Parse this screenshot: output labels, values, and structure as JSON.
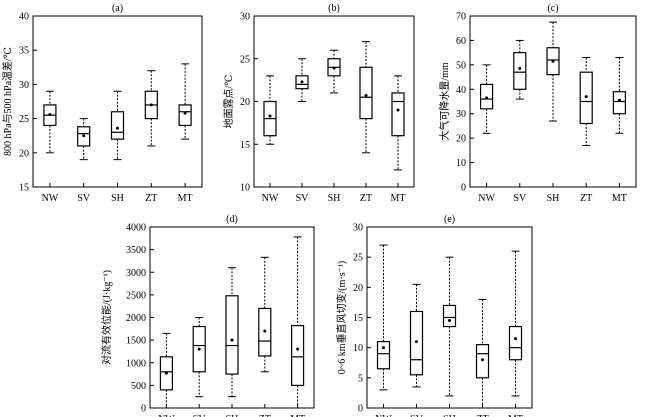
{
  "figure": {
    "categories": [
      "NW",
      "SV",
      "SH",
      "ZT",
      "MT"
    ]
  },
  "chart_data": [
    {
      "type": "box",
      "panel": "(a)",
      "ylabel": "800 hPa与500 hPa温差/℃",
      "ylim": [
        15,
        40
      ],
      "yticks": [
        15,
        20,
        25,
        30,
        35,
        40
      ],
      "categories": [
        "NW",
        "SV",
        "SH",
        "ZT",
        "MT"
      ],
      "boxes": [
        {
          "min": 20,
          "q1": 24,
          "median": 25.5,
          "q3": 27,
          "max": 29,
          "mean": 25.6
        },
        {
          "min": 19,
          "q1": 21,
          "median": 22.8,
          "q3": 23.8,
          "max": 25,
          "mean": 22.5
        },
        {
          "min": 19,
          "q1": 22,
          "median": 23,
          "q3": 26,
          "max": 29,
          "mean": 23.6
        },
        {
          "min": 21,
          "q1": 25,
          "median": 27,
          "q3": 29,
          "max": 32,
          "mean": 27
        },
        {
          "min": 22,
          "q1": 24,
          "median": 26,
          "q3": 27,
          "max": 33,
          "mean": 25.8
        }
      ]
    },
    {
      "type": "box",
      "panel": "(b)",
      "ylabel": "地面露点/℃",
      "ylim": [
        10,
        30
      ],
      "yticks": [
        10,
        15,
        20,
        25,
        30
      ],
      "categories": [
        "NW",
        "SV",
        "SH",
        "ZT",
        "MT"
      ],
      "boxes": [
        {
          "min": 15,
          "q1": 16,
          "median": 18,
          "q3": 20,
          "max": 23,
          "mean": 18.3
        },
        {
          "min": 20,
          "q1": 21.5,
          "median": 22,
          "q3": 23,
          "max": 25,
          "mean": 22.3
        },
        {
          "min": 21,
          "q1": 23,
          "median": 24,
          "q3": 25,
          "max": 26,
          "mean": 23.9
        },
        {
          "min": 14,
          "q1": 18,
          "median": 20.5,
          "q3": 24,
          "max": 27,
          "mean": 20.7
        },
        {
          "min": 12,
          "q1": 16,
          "median": 20,
          "q3": 21,
          "max": 23,
          "mean": 19
        }
      ]
    },
    {
      "type": "box",
      "panel": "(c)",
      "ylabel": "大气可降水量/mm",
      "ylim": [
        0,
        70
      ],
      "yticks": [
        0,
        10,
        20,
        30,
        40,
        50,
        60,
        70
      ],
      "categories": [
        "NW",
        "SV",
        "SH",
        "ZT",
        "MT"
      ],
      "boxes": [
        {
          "min": 22,
          "q1": 32,
          "median": 36,
          "q3": 42,
          "max": 50,
          "mean": 36.5
        },
        {
          "min": 36,
          "q1": 40,
          "median": 47,
          "q3": 55,
          "max": 60,
          "mean": 48.5
        },
        {
          "min": 27,
          "q1": 46,
          "median": 52,
          "q3": 57,
          "max": 67.5,
          "mean": 51.5
        },
        {
          "min": 17,
          "q1": 26,
          "median": 35,
          "q3": 47,
          "max": 53,
          "mean": 37
        },
        {
          "min": 22,
          "q1": 30,
          "median": 35,
          "q3": 39,
          "max": 53,
          "mean": 35.5
        }
      ]
    },
    {
      "type": "box",
      "panel": "(d)",
      "ylabel": "对流有效位能/(J·kg⁻¹)",
      "ylim": [
        0,
        4000
      ],
      "yticks": [
        0,
        500,
        1000,
        1500,
        2000,
        2500,
        3000,
        3500,
        4000
      ],
      "categories": [
        "NW",
        "SV",
        "SH",
        "ZT",
        "MT"
      ],
      "boxes": [
        {
          "min": 0,
          "q1": 400,
          "median": 800,
          "q3": 1130,
          "max": 1650,
          "mean": 770
        },
        {
          "min": 250,
          "q1": 800,
          "median": 1380,
          "q3": 1800,
          "max": 2000,
          "mean": 1300
        },
        {
          "min": 250,
          "q1": 750,
          "median": 1380,
          "q3": 2480,
          "max": 3100,
          "mean": 1500
        },
        {
          "min": 800,
          "q1": 1150,
          "median": 1480,
          "q3": 2200,
          "max": 3330,
          "mean": 1700
        },
        {
          "min": 0,
          "q1": 500,
          "median": 1130,
          "q3": 1820,
          "max": 3780,
          "mean": 1300
        }
      ]
    },
    {
      "type": "box",
      "panel": "(e)",
      "ylabel": "0~6 km垂直风切变/(m·s⁻¹)",
      "ylim": [
        0,
        30
      ],
      "yticks": [
        0,
        5,
        10,
        15,
        20,
        25,
        30
      ],
      "categories": [
        "NW",
        "SV",
        "SH",
        "ZT",
        "MT"
      ],
      "boxes": [
        {
          "min": 3,
          "q1": 6.5,
          "median": 9,
          "q3": 11,
          "max": 27,
          "mean": 10
        },
        {
          "min": 3.5,
          "q1": 5.5,
          "median": 8,
          "q3": 16,
          "max": 20.5,
          "mean": 11
        },
        {
          "min": 2,
          "q1": 13.5,
          "median": 15,
          "q3": 17,
          "max": 25,
          "mean": 14.5
        },
        {
          "min": 0,
          "q1": 5,
          "median": 9,
          "q3": 10.5,
          "max": 18,
          "mean": 8
        },
        {
          "min": 2,
          "q1": 8,
          "median": 10,
          "q3": 13.5,
          "max": 26,
          "mean": 11.5
        }
      ]
    }
  ]
}
